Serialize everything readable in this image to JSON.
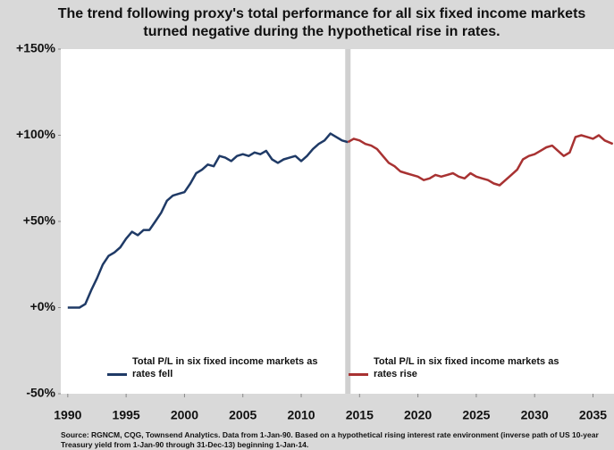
{
  "chart_data": {
    "type": "line",
    "title": "The trend following proxy's total performance for all six fixed income markets turned negative during the hypothetical rise in rates.",
    "source": "Source: RGNCM, CQG, Townsend Analytics. Data from 1-Jan-90.  Based on a hypothetical rising interest rate environment (inverse path of US 10-year Treasury yield from 1-Jan-90 through 31-Dec-13) beginning 1-Jan-14.",
    "xlim": [
      1989.4,
      2036.8
    ],
    "xticks": [
      1990,
      1995,
      2000,
      2005,
      2010,
      2015,
      2020,
      2025,
      2030,
      2035
    ],
    "ylim": [
      -50,
      150
    ],
    "yticks": [
      {
        "value": -50,
        "label": "-50%"
      },
      {
        "value": 0,
        "label": "+0%"
      },
      {
        "value": 50,
        "label": "+50%"
      },
      {
        "value": 100,
        "label": "+100%"
      },
      {
        "value": 150,
        "label": "+150%"
      }
    ],
    "series": [
      {
        "name": "Total P/L in six fixed income markets as rates fell",
        "color": "#1f3a66",
        "x": [
          1990,
          1990.5,
          1991,
          1991.5,
          1992,
          1992.5,
          1993,
          1993.5,
          1994,
          1994.5,
          1995,
          1995.5,
          1996,
          1996.5,
          1997,
          1997.5,
          1998,
          1998.5,
          1999,
          1999.5,
          2000,
          2000.5,
          2001,
          2001.5,
          2002,
          2002.5,
          2003,
          2003.5,
          2004,
          2004.5,
          2005,
          2005.5,
          2006,
          2006.5,
          2007,
          2007.5,
          2008,
          2008.5,
          2009,
          2009.5,
          2010,
          2010.5,
          2011,
          2011.5,
          2012,
          2012.5,
          2013,
          2013.5,
          2014
        ],
        "values": [
          0,
          0,
          0,
          2,
          10,
          17,
          25,
          30,
          32,
          35,
          40,
          44,
          42,
          45,
          45,
          50,
          55,
          62,
          65,
          66,
          67,
          72,
          78,
          80,
          83,
          82,
          88,
          87,
          85,
          88,
          89,
          88,
          90,
          89,
          91,
          86,
          84,
          86,
          87,
          88,
          85,
          88,
          92,
          95,
          97,
          101,
          99,
          97,
          96
        ]
      },
      {
        "name": "Total P/L in six fixed income markets as rates rise",
        "color": "#a83232",
        "x": [
          2014,
          2014.5,
          2015,
          2015.5,
          2016,
          2016.5,
          2017,
          2017.5,
          2018,
          2018.5,
          2019,
          2019.5,
          2020,
          2020.5,
          2021,
          2021.5,
          2022,
          2022.5,
          2023,
          2023.5,
          2024,
          2024.5,
          2025,
          2025.5,
          2026,
          2026.5,
          2027,
          2027.5,
          2028,
          2028.5,
          2029,
          2029.5,
          2030,
          2030.5,
          2031,
          2031.5,
          2032,
          2032.5,
          2033,
          2033.5,
          2034,
          2034.5,
          2035,
          2035.5,
          2036,
          2036.7
        ],
        "values": [
          96,
          98,
          97,
          95,
          94,
          92,
          88,
          84,
          82,
          79,
          78,
          77,
          76,
          74,
          75,
          77,
          76,
          77,
          78,
          76,
          75,
          78,
          76,
          75,
          74,
          72,
          71,
          74,
          77,
          80,
          86,
          88,
          89,
          91,
          93,
          94,
          91,
          88,
          90,
          99,
          100,
          99,
          98,
          100,
          97,
          95
        ]
      }
    ]
  }
}
